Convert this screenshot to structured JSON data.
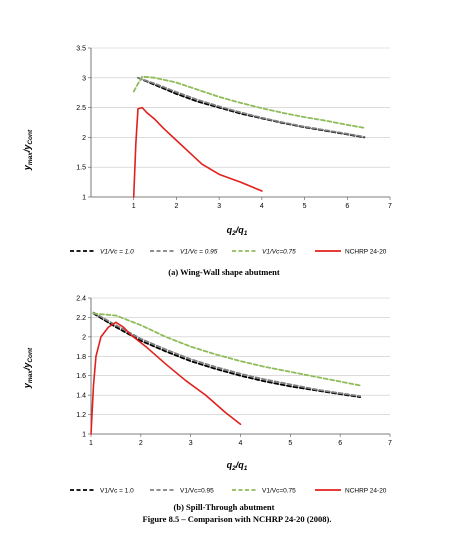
{
  "chart_data": [
    {
      "type": "line",
      "caption": "(a) Wing-Wall shape abutment",
      "xlabel": {
        "main": "q",
        "sub1": "2",
        "sep": "/q",
        "sub2": "1"
      },
      "ylabel": {
        "main": "y",
        "sub1": "max",
        "sep": "/y",
        "sub2": "Cont"
      },
      "xlim": [
        0,
        7
      ],
      "ylim": [
        1,
        3.5
      ],
      "xticks": [
        "1",
        "2",
        "3",
        "4",
        "5",
        "6",
        "7"
      ],
      "xtick_values": [
        1,
        2,
        3,
        4,
        5,
        6,
        7
      ],
      "yticks": [
        "1",
        "1.5",
        "2",
        "2.5",
        "3",
        "3.5"
      ],
      "ytick_values": [
        1,
        1.5,
        2,
        2.5,
        3,
        3.5
      ],
      "grid": "horizontal",
      "legend_position": "bottom",
      "series": [
        {
          "name": "V1/Vc = 1.0",
          "color": "#000000",
          "style": "dash",
          "x": [
            1.1,
            1.5,
            2,
            2.5,
            3,
            3.5,
            4,
            4.5,
            5,
            5.5,
            6,
            6.4
          ],
          "y": [
            3.0,
            2.88,
            2.73,
            2.6,
            2.5,
            2.4,
            2.32,
            2.24,
            2.17,
            2.11,
            2.05,
            2.0
          ]
        },
        {
          "name": "V1/Vc = 0.95",
          "color": "#808080",
          "style": "dash",
          "x": [
            1.1,
            1.5,
            2,
            2.5,
            3,
            3.5,
            4,
            4.5,
            5,
            5.5,
            6,
            6.4
          ],
          "y": [
            3.0,
            2.9,
            2.76,
            2.63,
            2.52,
            2.42,
            2.33,
            2.25,
            2.18,
            2.12,
            2.06,
            2.01
          ]
        },
        {
          "name": "V1/Vc=0.75",
          "color": "#8fbc5a",
          "style": "dash",
          "x": [
            1.0,
            1.1,
            1.2,
            1.5,
            2,
            2.5,
            3,
            3.5,
            4,
            4.5,
            5,
            5.5,
            6,
            6.4
          ],
          "y": [
            2.77,
            2.9,
            3.02,
            3.0,
            2.92,
            2.8,
            2.68,
            2.58,
            2.49,
            2.41,
            2.34,
            2.28,
            2.21,
            2.16
          ]
        },
        {
          "name": "NCHRP 24-20",
          "color": "#e0211c",
          "style": "solid",
          "x": [
            1.0,
            1.05,
            1.1,
            1.2,
            1.3,
            1.5,
            1.7,
            2,
            2.3,
            2.6,
            3,
            3.5,
            4
          ],
          "y": [
            1.0,
            1.9,
            2.48,
            2.5,
            2.42,
            2.3,
            2.15,
            1.95,
            1.75,
            1.55,
            1.38,
            1.25,
            1.1
          ]
        }
      ]
    },
    {
      "type": "line",
      "caption": "(b) Spill-Through abutment",
      "xlabel": {
        "main": "q",
        "sub1": "2",
        "sep": "/q",
        "sub2": "1"
      },
      "ylabel": {
        "main": "y",
        "sub1": "max",
        "sep": "/y",
        "sub2": "Cont"
      },
      "xlim": [
        1,
        7
      ],
      "ylim": [
        1,
        2.4
      ],
      "xticks": [
        "1",
        "2",
        "3",
        "4",
        "5",
        "6",
        "7"
      ],
      "xtick_values": [
        1,
        2,
        3,
        4,
        5,
        6,
        7
      ],
      "yticks": [
        "1",
        "1.2",
        "1.4",
        "1.6",
        "1.8",
        "2",
        "2.2",
        "2.4"
      ],
      "ytick_values": [
        1,
        1.2,
        1.4,
        1.6,
        1.8,
        2,
        2.2,
        2.4
      ],
      "grid": "horizontal",
      "legend_position": "bottom",
      "series": [
        {
          "name": "V1/Vc = 1.0",
          "color": "#000000",
          "style": "dash",
          "x": [
            1.05,
            1.5,
            2,
            2.5,
            3,
            3.5,
            4,
            4.5,
            5,
            5.5,
            6,
            6.4
          ],
          "y": [
            2.24,
            2.1,
            1.96,
            1.85,
            1.75,
            1.67,
            1.6,
            1.54,
            1.49,
            1.45,
            1.41,
            1.38
          ]
        },
        {
          "name": "V1/Vc=0.95",
          "color": "#808080",
          "style": "dash",
          "x": [
            1.05,
            1.5,
            2,
            2.5,
            3,
            3.5,
            4,
            4.5,
            5,
            5.5,
            6,
            6.4
          ],
          "y": [
            2.25,
            2.12,
            1.98,
            1.87,
            1.77,
            1.69,
            1.62,
            1.56,
            1.51,
            1.46,
            1.42,
            1.39
          ]
        },
        {
          "name": "V1/Vc=0.75",
          "color": "#8fbc5a",
          "style": "dash",
          "x": [
            1.05,
            1.5,
            2,
            2.5,
            3,
            3.5,
            4,
            4.5,
            5,
            5.5,
            6,
            6.4
          ],
          "y": [
            2.24,
            2.22,
            2.12,
            2.0,
            1.9,
            1.82,
            1.75,
            1.69,
            1.64,
            1.59,
            1.54,
            1.5
          ]
        },
        {
          "name": "NCHRP 24-20",
          "color": "#e0211c",
          "style": "solid",
          "x": [
            1.0,
            1.05,
            1.1,
            1.2,
            1.35,
            1.5,
            1.65,
            1.8,
            2.1,
            2.5,
            2.9,
            3.3,
            3.7,
            4.0
          ],
          "y": [
            1.0,
            1.5,
            1.8,
            2.0,
            2.1,
            2.15,
            2.1,
            2.02,
            1.9,
            1.72,
            1.55,
            1.4,
            1.22,
            1.1
          ]
        }
      ]
    }
  ],
  "figure_caption": "Figure 8.5 – Comparison with NCHRP 24-20 (2008)."
}
